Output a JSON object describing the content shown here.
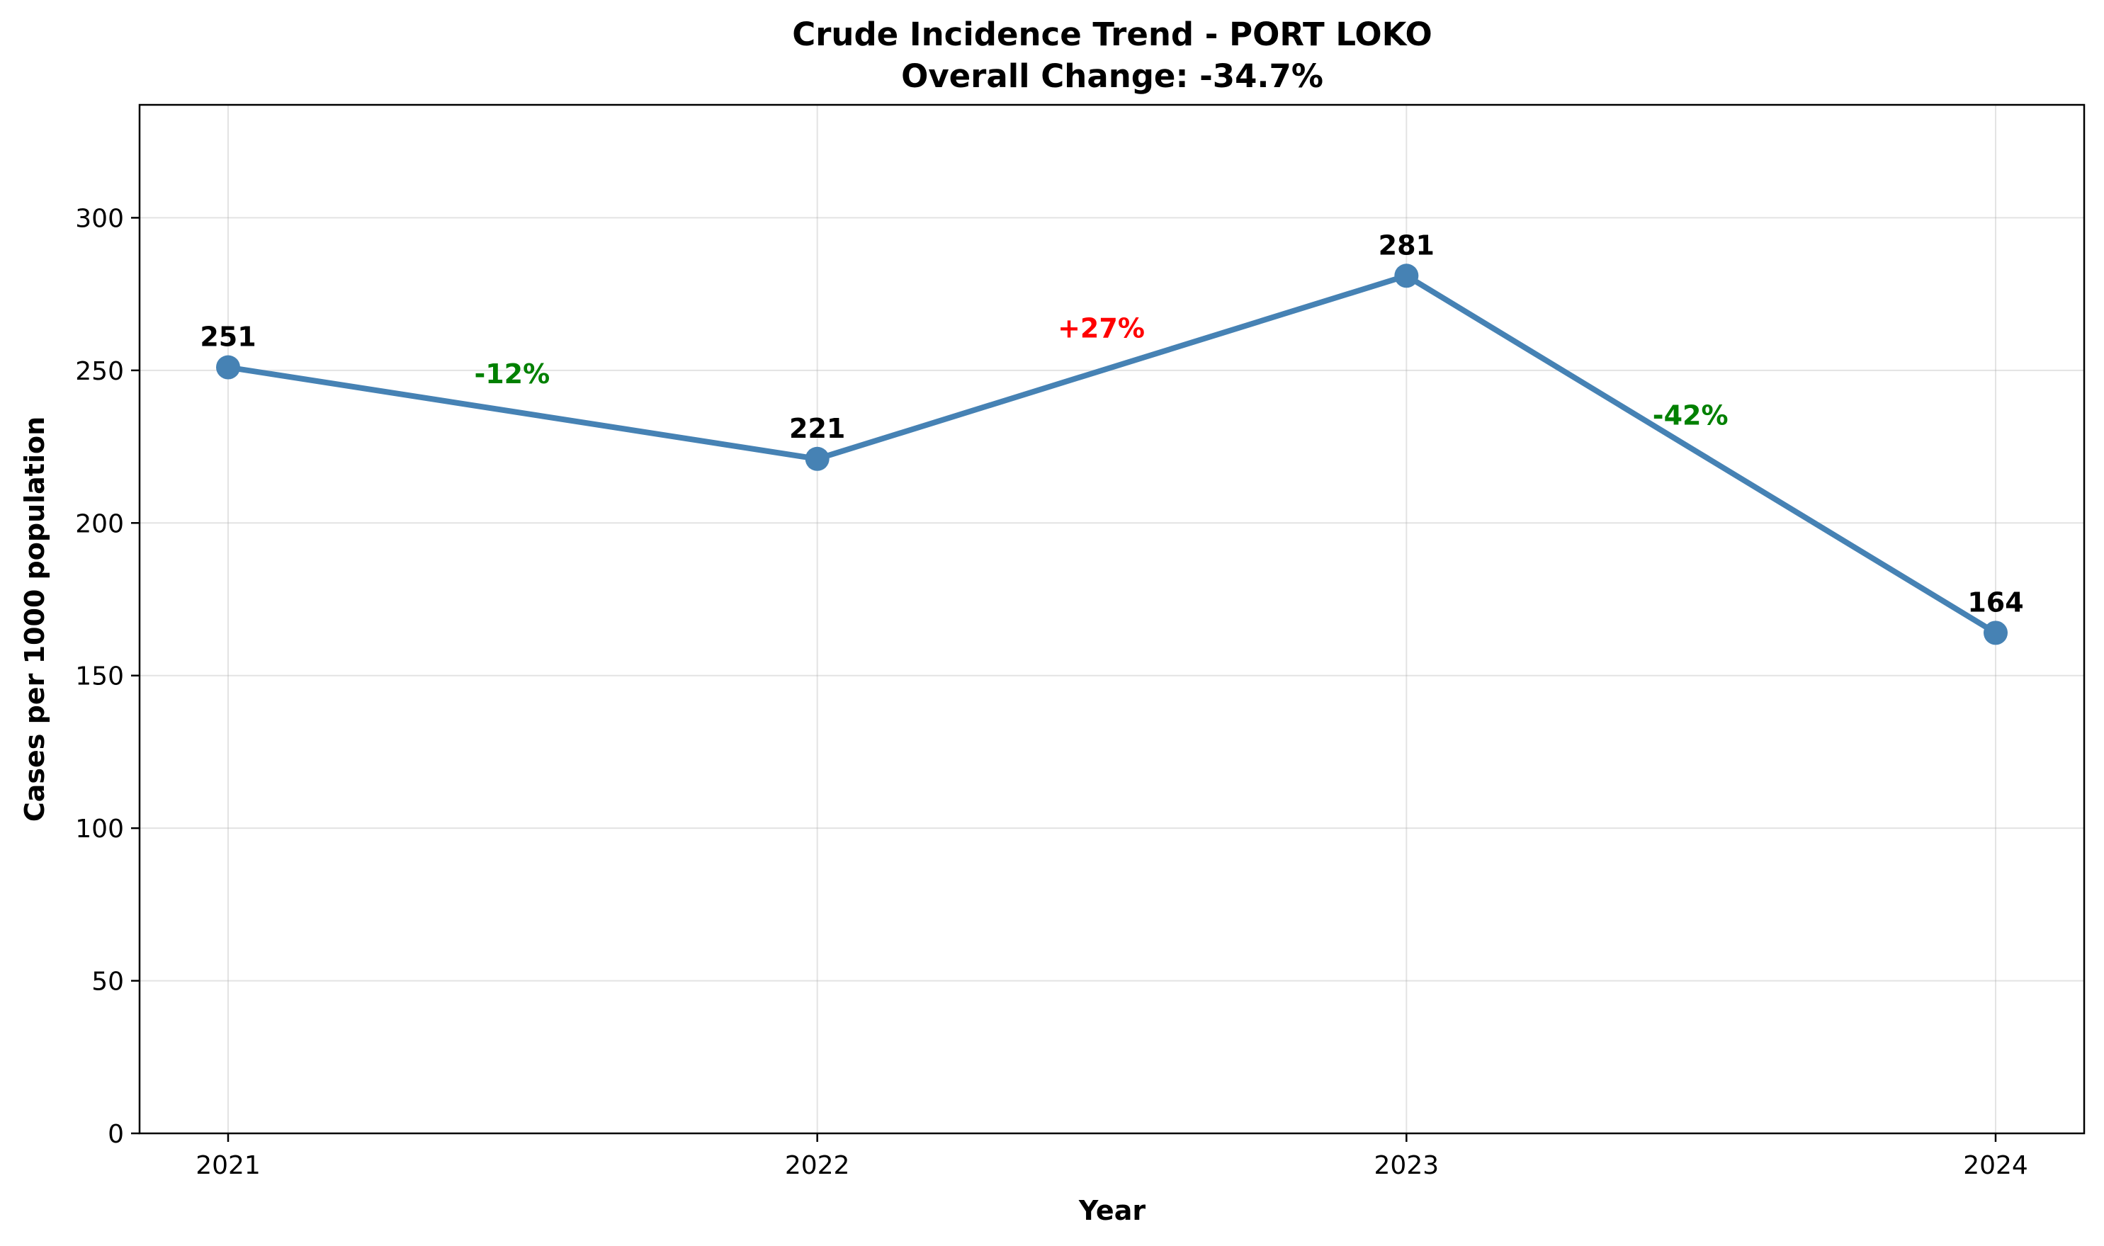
{
  "chart_data": {
    "type": "line",
    "title": "Crude Incidence Trend - PORT LOKO",
    "subtitle": "Overall Change: -34.7%",
    "xlabel": "Year",
    "ylabel": "Cases per 1000 population",
    "x": [
      "2021",
      "2022",
      "2023",
      "2024"
    ],
    "values": [
      251,
      221,
      281,
      164
    ],
    "data_labels": [
      "251",
      "221",
      "281",
      "164"
    ],
    "changes": [
      {
        "label": "-12%",
        "color": "#008000"
      },
      {
        "label": "+27%",
        "color": "#ff0000"
      },
      {
        "label": "-42%",
        "color": "#008000"
      }
    ],
    "ylim": [
      0,
      337
    ],
    "yticks": [
      0,
      50,
      100,
      150,
      200,
      250,
      300
    ],
    "grid": true,
    "line_color": "#4682b4"
  }
}
